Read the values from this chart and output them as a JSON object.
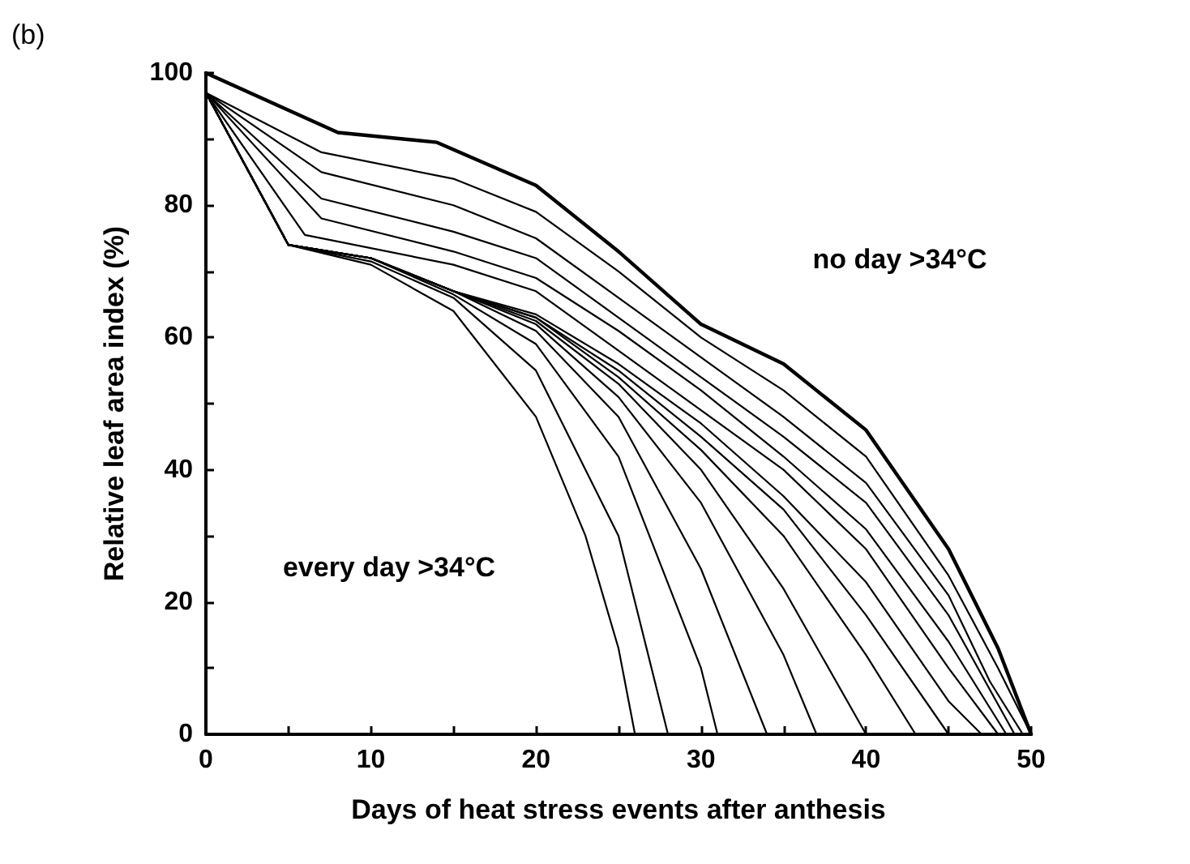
{
  "chart_data": {
    "type": "line",
    "title": "(b)",
    "xlabel": "Days of heat stress events after anthesis",
    "ylabel": "Relative leaf area index (%)",
    "xlim": [
      0,
      50
    ],
    "xticks": [
      0,
      {
        "value": 5,
        "label": null
      },
      10,
      {
        "value": 15,
        "label": null
      },
      20,
      {
        "value": 25,
        "label": null
      },
      30,
      {
        "value": 35,
        "label": null
      },
      40,
      {
        "value": 45,
        "label": null
      },
      50
    ],
    "ylim": [
      0,
      100
    ],
    "yticks": [
      0,
      {
        "value": 10,
        "label": null
      },
      20,
      {
        "value": 30,
        "label": null
      },
      40,
      {
        "value": 50,
        "label": null
      },
      60,
      {
        "value": 70,
        "label": null
      },
      80,
      {
        "value": 90,
        "label": null
      },
      100
    ],
    "grid": false,
    "marker": "none",
    "line_style": "solid",
    "annotations": [
      "no day >34°C",
      "every day >34°C"
    ],
    "series": [
      {
        "color": "#000000",
        "x": [
          0,
          8,
          14,
          20,
          25,
          30,
          35,
          40,
          45,
          48,
          50
        ],
        "values": [
          100,
          91,
          89.5,
          83,
          73,
          62,
          56,
          46,
          28,
          13,
          0
        ]
      },
      {
        "color": "#000000",
        "x": [
          0,
          7,
          15,
          20,
          25,
          30,
          35,
          40,
          45,
          48,
          50
        ],
        "values": [
          97,
          88,
          84,
          79,
          70,
          60,
          52,
          42,
          24,
          10,
          0
        ]
      },
      {
        "color": "#000000",
        "x": [
          0,
          7,
          15,
          20,
          25,
          30,
          35,
          40,
          45,
          47.5,
          49.5
        ],
        "values": [
          97,
          85,
          80,
          75,
          66,
          57,
          48,
          38,
          21,
          8,
          0
        ]
      },
      {
        "color": "#000000",
        "x": [
          0,
          7,
          15,
          20,
          25,
          30,
          35,
          40,
          45,
          49
        ],
        "values": [
          97,
          81,
          76,
          72,
          63,
          54,
          45,
          35,
          18,
          0
        ]
      },
      {
        "color": "#000000",
        "x": [
          0,
          7,
          15,
          20,
          25,
          30,
          35,
          40,
          45,
          48.5
        ],
        "values": [
          97,
          78,
          73,
          69,
          61,
          52,
          42,
          31,
          14,
          0
        ]
      },
      {
        "color": "#000000",
        "x": [
          0,
          6,
          15,
          20,
          25,
          30,
          35,
          40,
          45,
          48
        ],
        "values": [
          97,
          75.5,
          71,
          67,
          58,
          49,
          40,
          28,
          10,
          0
        ]
      },
      {
        "color": "#000000",
        "x": [
          0,
          5,
          10,
          15,
          20,
          25,
          30,
          35,
          40,
          45,
          47
        ],
        "values": [
          97,
          74,
          72,
          67,
          63.5,
          56,
          47,
          36,
          23,
          5,
          0
        ]
      },
      {
        "color": "#000000",
        "x": [
          0,
          5,
          10,
          15,
          20,
          25,
          30,
          35,
          40,
          45
        ],
        "values": [
          97,
          74,
          72,
          67,
          63,
          55,
          45,
          34,
          18,
          0
        ]
      },
      {
        "color": "#000000",
        "x": [
          0,
          5,
          10,
          15,
          20,
          25,
          30,
          35,
          40,
          43
        ],
        "values": [
          97,
          74,
          72,
          67,
          63,
          54,
          43,
          30,
          12,
          0
        ]
      },
      {
        "color": "#000000",
        "x": [
          0,
          5,
          10,
          15,
          20,
          25,
          30,
          35,
          40
        ],
        "values": [
          97,
          74,
          72,
          67,
          62.5,
          53,
          40,
          22,
          0
        ]
      },
      {
        "color": "#000000",
        "x": [
          0,
          5,
          10,
          15,
          20,
          25,
          30,
          35,
          37
        ],
        "values": [
          97,
          74,
          72,
          67,
          62,
          51,
          35,
          12,
          0
        ]
      },
      {
        "color": "#000000",
        "x": [
          0,
          5,
          10,
          15,
          20,
          25,
          30,
          34
        ],
        "values": [
          97,
          74,
          72,
          67,
          61,
          48,
          25,
          0
        ]
      },
      {
        "color": "#000000",
        "x": [
          0,
          5,
          10,
          15,
          20,
          25,
          30,
          31
        ],
        "values": [
          97,
          74,
          72,
          66.5,
          59,
          42,
          10,
          0
        ]
      },
      {
        "color": "#000000",
        "x": [
          0,
          5,
          10,
          15,
          20,
          25,
          28
        ],
        "values": [
          97,
          74,
          71.5,
          66,
          55,
          30,
          0
        ]
      },
      {
        "color": "#000000",
        "x": [
          0,
          5,
          10,
          15,
          20,
          23,
          25,
          26
        ],
        "values": [
          97,
          74,
          71,
          64,
          48,
          30,
          13,
          0
        ]
      }
    ]
  }
}
